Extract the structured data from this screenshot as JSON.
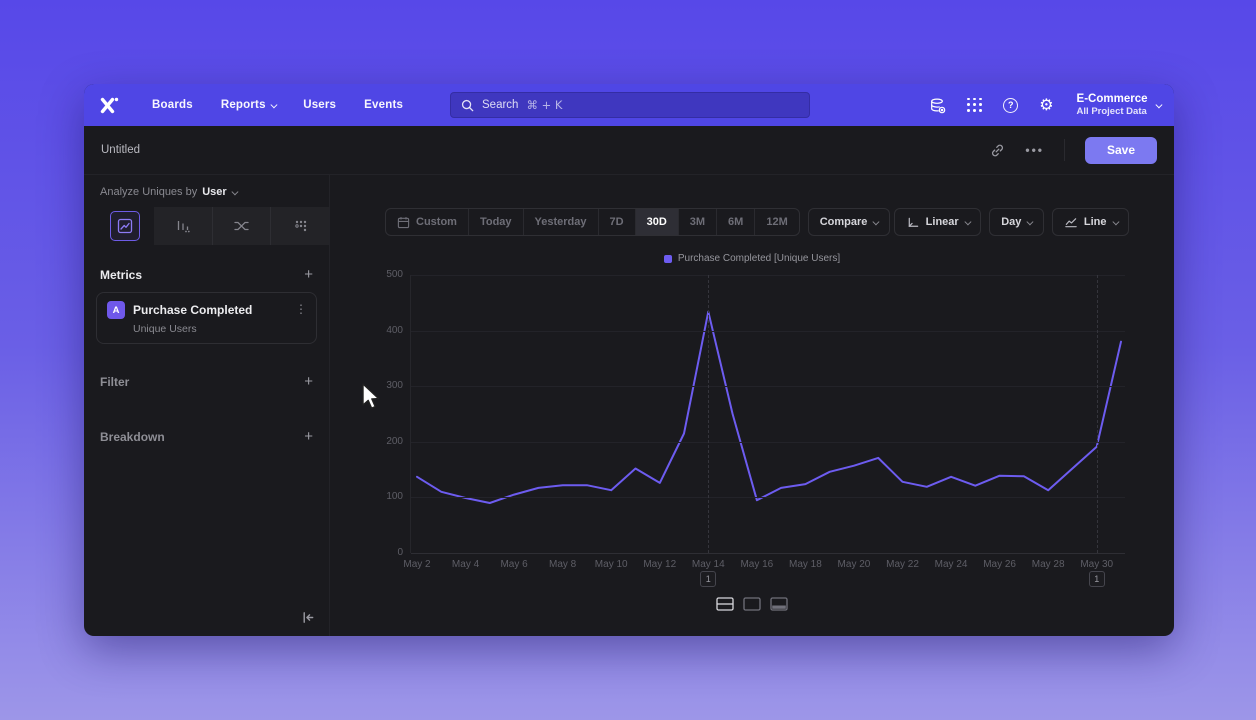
{
  "nav": {
    "items": [
      "Boards",
      "Reports",
      "Users",
      "Events"
    ],
    "search_label": "Search",
    "search_shortcut": "⌘ + K",
    "project_name": "E-Commerce",
    "project_scope": "All Project Data"
  },
  "header": {
    "title": "Untitled",
    "more_label": "•••",
    "save_label": "Save"
  },
  "sidebar": {
    "analyze_prefix": "Analyze Uniques by",
    "analyze_entity": "User",
    "metrics_title": "Metrics",
    "metric_badge": "A",
    "metric_name": "Purchase Completed",
    "metric_subtitle": "Unique Users",
    "kebab": "⋮",
    "plus": "+",
    "filter_title": "Filter",
    "breakdown_title": "Breakdown"
  },
  "toolbar": {
    "ranges": [
      "Custom",
      "Today",
      "Yesterday",
      "7D",
      "30D",
      "3M",
      "6M",
      "12M"
    ],
    "active_range": "30D",
    "compare_label": "Compare",
    "scale_label": "Linear",
    "interval_label": "Day",
    "chart_type_label": "Line"
  },
  "icons": {
    "view_toggles": [
      "layout-split-rows",
      "layout-chart-only",
      "layout-table-bottom"
    ]
  },
  "chart_data": {
    "type": "line",
    "title": "",
    "legend": "Purchase Completed [Unique Users]",
    "legend_position": "top-center",
    "grid": "horizontal",
    "interval": "Day",
    "x_tick_labels": [
      "May 2",
      "May 4",
      "May 6",
      "May 8",
      "May 10",
      "May 12",
      "May 14",
      "May 16",
      "May 18",
      "May 20",
      "May 22",
      "May 24",
      "May 26",
      "May 28",
      "May 30"
    ],
    "ylim": [
      0,
      500
    ],
    "yticks": [
      0,
      100,
      200,
      300,
      400,
      500
    ],
    "series": [
      {
        "name": "Purchase Completed [Unique Users]",
        "color": "#6d5cf0",
        "x_start": "May 2",
        "values": [
          137,
          110,
          99,
          90,
          105,
          117,
          122,
          122,
          113,
          152,
          126,
          215,
          434,
          250,
          95,
          117,
          124,
          146,
          157,
          171,
          128,
          119,
          137,
          121,
          139,
          138,
          113,
          152,
          191,
          380
        ]
      }
    ],
    "annotations": [
      {
        "label": "1",
        "day_index": 12,
        "date": "May 14"
      },
      {
        "label": "1",
        "day_index": 28,
        "date": "May 30"
      }
    ]
  }
}
